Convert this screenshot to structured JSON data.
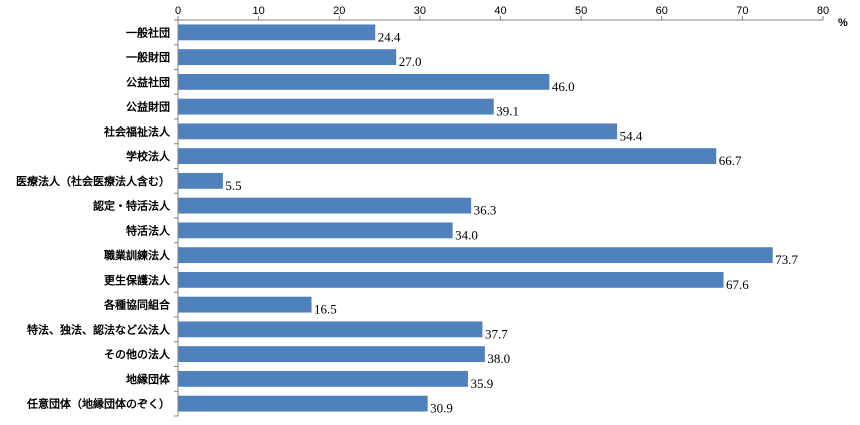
{
  "chart_data": {
    "type": "bar",
    "orientation": "horizontal",
    "unit": "%",
    "xlim": [
      0,
      80
    ],
    "x_ticks": [
      0,
      10,
      20,
      30,
      40,
      50,
      60,
      70,
      80
    ],
    "x_axis_position": "top",
    "grid": false,
    "bar_color": "#4f81bd",
    "categories": [
      "一般社団",
      "一般財団",
      "公益社団",
      "公益財団",
      "社会福祉法人",
      "学校法人",
      "医療法人（社会医療法人含む）",
      "認定・特活法人",
      "特活法人",
      "職業訓練法人",
      "更生保護法人",
      "各種協同組合",
      "特法、独法、認法など公法人",
      "その他の法人",
      "地縁団体",
      "任意団体（地縁団体のぞく）"
    ],
    "values": [
      24.4,
      27.0,
      46.0,
      39.1,
      54.4,
      66.7,
      5.5,
      36.3,
      34.0,
      73.7,
      67.6,
      16.5,
      37.7,
      38.0,
      35.9,
      30.9
    ],
    "value_labels": [
      "24.4",
      "27.0",
      "46.0",
      "39.1",
      "54.4",
      "66.7",
      "5.5",
      "36.3",
      "34.0",
      "73.7",
      "67.6",
      "16.5",
      "37.7",
      "38.0",
      "35.9",
      "30.9"
    ]
  }
}
